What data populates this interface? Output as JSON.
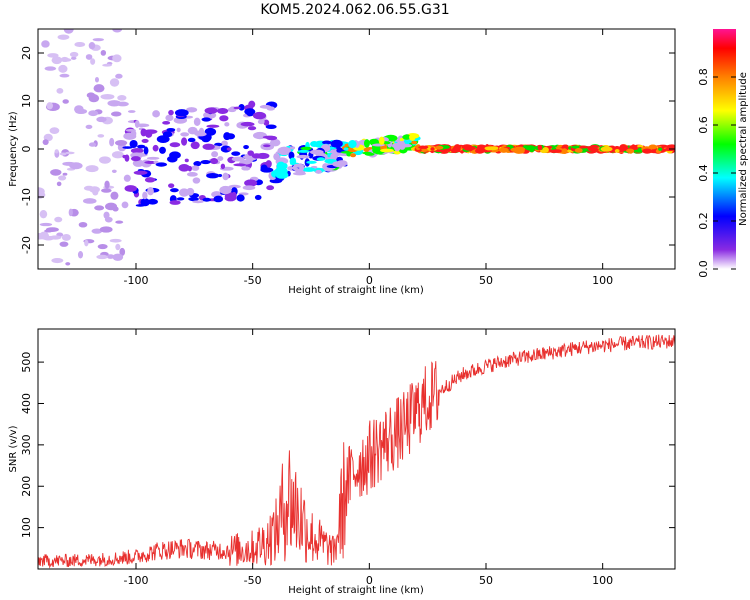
{
  "title": "KOM5.2024.062.06.55.G31",
  "chart_data": [
    {
      "type": "heatmap",
      "xlabel": "Height of straight line (km)",
      "ylabel": "Frequency (Hz)",
      "xlim": [
        -142,
        131
      ],
      "ylim": [
        -25,
        25
      ],
      "xticks": [
        -100,
        -50,
        0,
        50,
        100
      ],
      "yticks": [
        -20,
        -10,
        0,
        10,
        20
      ],
      "colorbar": {
        "label": "Normalized spectral amplitude",
        "range": [
          0,
          1
        ],
        "ticks": [
          "0.0",
          "0.2",
          "0.4",
          "0.6",
          "0.8"
        ],
        "colormap": "rainbow",
        "colors": [
          "#ffffff",
          "#8a2be2",
          "#0000ff",
          "#00ffff",
          "#00ff00",
          "#ffff00",
          "#ff8000",
          "#ff0000",
          "#ff1493"
        ]
      },
      "features": [
        {
          "x_range": [
            -142,
            -105
          ],
          "freq_range": [
            -25,
            25
          ],
          "amplitude": 0.1
        },
        {
          "x_range": [
            -105,
            -40
          ],
          "freq_range": [
            -12,
            8
          ],
          "amplitude": 0.2
        },
        {
          "x_range": [
            -40,
            -10
          ],
          "freq_range": [
            -6,
            0
          ],
          "amplitude": 0.35
        },
        {
          "x_range": [
            -10,
            20
          ],
          "freq_range": [
            -2,
            1
          ],
          "amplitude": 0.6
        },
        {
          "x_range": [
            20,
            131
          ],
          "freq_range": [
            -0.5,
            0.5
          ],
          "amplitude": 0.95
        }
      ]
    },
    {
      "type": "line",
      "xlabel": "Height of straight line (km)",
      "ylabel": "SNR (v/v)",
      "xlim": [
        -142,
        131
      ],
      "ylim": [
        0,
        580
      ],
      "xticks": [
        -100,
        -50,
        0,
        50,
        100
      ],
      "yticks": [
        100,
        200,
        300,
        400,
        500
      ],
      "color": "#e8302e",
      "series": [
        {
          "x": [
            -142,
            -130,
            -120,
            -110,
            -100,
            -90,
            -80,
            -70,
            -60,
            -50,
            -45,
            -40,
            -35,
            -30,
            -25,
            -20,
            -15,
            -10,
            -5,
            0,
            5,
            10,
            15,
            20,
            25,
            30,
            35,
            40,
            50,
            60,
            70,
            80,
            90,
            100,
            110,
            120,
            131
          ],
          "y": [
            20,
            20,
            22,
            25,
            30,
            45,
            50,
            45,
            45,
            50,
            65,
            90,
            180,
            130,
            80,
            60,
            40,
            200,
            250,
            270,
            300,
            320,
            340,
            380,
            410,
            430,
            450,
            470,
            490,
            505,
            515,
            525,
            535,
            540,
            545,
            548,
            550
          ]
        }
      ]
    }
  ]
}
